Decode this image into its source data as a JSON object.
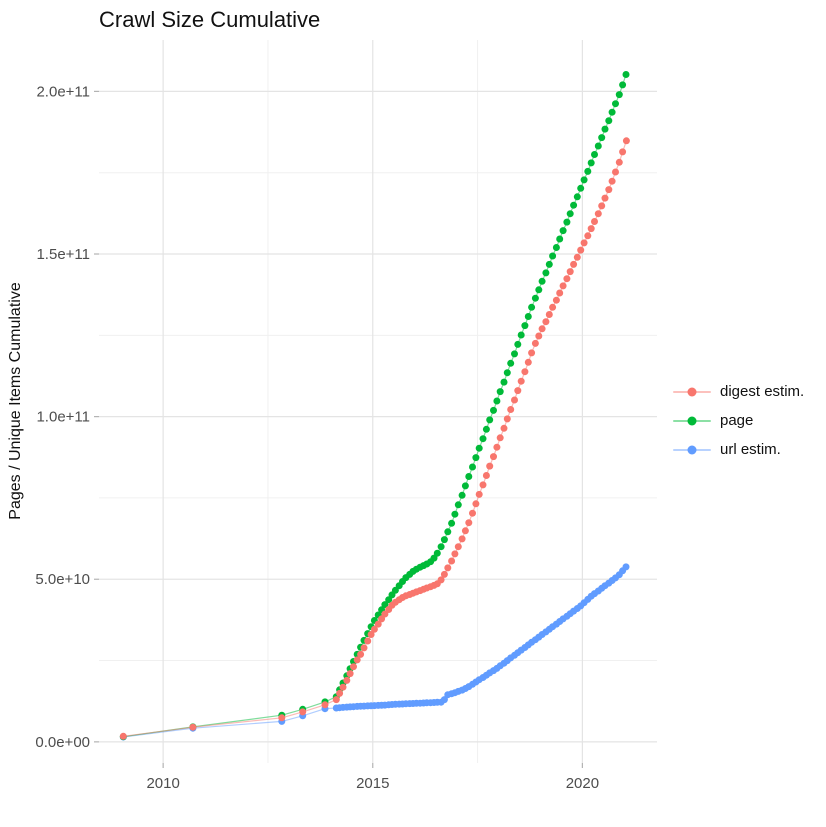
{
  "chart_data": {
    "type": "scatter",
    "title": "Crawl Size Cumulative",
    "xlabel": "",
    "ylabel": "Pages / Unique Items Cumulative",
    "legend_position": "right",
    "grid": true,
    "xlim": [
      2008.47,
      2021.78
    ],
    "ylim_e9": [
      -6.5,
      215.8
    ],
    "y_unit": 1000000000,
    "x_ticks": {
      "values": [
        2010,
        2015,
        2020
      ],
      "labels": [
        "2010",
        "2015",
        "2020"
      ]
    },
    "x_minor": [
      2012.5,
      2017.5
    ],
    "y_ticks": {
      "values_e9": [
        0,
        50,
        100,
        150,
        200
      ],
      "labels": [
        "0.0e+00",
        "5.0e+10",
        "1.0e+11",
        "1.5e+11",
        "2.0e+11"
      ]
    },
    "y_minor_e9": [
      25,
      75,
      125,
      175
    ],
    "style": {
      "background": "#FFFFFF",
      "grid_major": "#E4E4E4",
      "grid_minor": "#F0F0F0",
      "tick_color": "#B3B3B3",
      "tick_label_color": "#4D4D4D",
      "point_radius": 3.5
    },
    "draw_order": [
      2,
      1,
      0
    ],
    "series": [
      {
        "name": "digest estim.",
        "color": "#F8766D",
        "points_year_e9": [
          [
            2009.05,
            1.7
          ],
          [
            2010.71,
            4.5
          ],
          [
            2012.83,
            7.4
          ],
          [
            2013.33,
            9.2
          ],
          [
            2013.86,
            11.4
          ],
          [
            2014.13,
            13.0
          ],
          [
            2014.21,
            14.9
          ],
          [
            2014.29,
            16.8
          ],
          [
            2014.38,
            18.9
          ],
          [
            2014.46,
            21.0
          ],
          [
            2014.54,
            23.1
          ],
          [
            2014.63,
            25.2
          ],
          [
            2014.71,
            26.9
          ],
          [
            2014.79,
            28.9
          ],
          [
            2014.88,
            31.0
          ],
          [
            2014.96,
            33.0
          ],
          [
            2015.04,
            34.6
          ],
          [
            2015.13,
            36.2
          ],
          [
            2015.21,
            37.8
          ],
          [
            2015.29,
            39.3
          ],
          [
            2015.38,
            40.7
          ],
          [
            2015.46,
            42.0
          ],
          [
            2015.54,
            42.9
          ],
          [
            2015.63,
            43.7
          ],
          [
            2015.71,
            44.4
          ],
          [
            2015.79,
            44.9
          ],
          [
            2015.88,
            45.3
          ],
          [
            2015.96,
            45.7
          ],
          [
            2016.04,
            46.1
          ],
          [
            2016.13,
            46.5
          ],
          [
            2016.21,
            46.9
          ],
          [
            2016.29,
            47.3
          ],
          [
            2016.38,
            47.7
          ],
          [
            2016.46,
            48.1
          ],
          [
            2016.54,
            48.6
          ],
          [
            2016.63,
            49.8
          ],
          [
            2016.71,
            51.5
          ],
          [
            2016.79,
            53.5
          ],
          [
            2016.88,
            55.6
          ],
          [
            2016.96,
            57.8
          ],
          [
            2017.04,
            60.0
          ],
          [
            2017.13,
            62.4
          ],
          [
            2017.21,
            64.9
          ],
          [
            2017.29,
            67.4
          ],
          [
            2017.38,
            70.3
          ],
          [
            2017.46,
            73.2
          ],
          [
            2017.54,
            76.1
          ],
          [
            2017.63,
            79.0
          ],
          [
            2017.71,
            81.9
          ],
          [
            2017.79,
            84.8
          ],
          [
            2017.88,
            87.7
          ],
          [
            2017.96,
            90.6
          ],
          [
            2018.04,
            93.5
          ],
          [
            2018.13,
            96.4
          ],
          [
            2018.21,
            99.3
          ],
          [
            2018.29,
            102.2
          ],
          [
            2018.38,
            105.1
          ],
          [
            2018.46,
            108.0
          ],
          [
            2018.54,
            110.9
          ],
          [
            2018.63,
            113.8
          ],
          [
            2018.71,
            116.7
          ],
          [
            2018.79,
            119.6
          ],
          [
            2018.88,
            122.5
          ],
          [
            2018.96,
            124.8
          ],
          [
            2019.04,
            127.0
          ],
          [
            2019.13,
            129.2
          ],
          [
            2019.21,
            131.4
          ],
          [
            2019.29,
            133.6
          ],
          [
            2019.38,
            135.8
          ],
          [
            2019.46,
            138.0
          ],
          [
            2019.54,
            140.2
          ],
          [
            2019.63,
            142.4
          ],
          [
            2019.71,
            144.6
          ],
          [
            2019.79,
            146.8
          ],
          [
            2019.88,
            149.0
          ],
          [
            2019.96,
            151.2
          ],
          [
            2020.04,
            153.4
          ],
          [
            2020.13,
            155.6
          ],
          [
            2020.21,
            157.8
          ],
          [
            2020.29,
            160.0
          ],
          [
            2020.38,
            162.4
          ],
          [
            2020.46,
            164.8
          ],
          [
            2020.54,
            167.2
          ],
          [
            2020.63,
            169.8
          ],
          [
            2020.71,
            172.4
          ],
          [
            2020.79,
            175.2
          ],
          [
            2020.88,
            178.2
          ],
          [
            2020.96,
            181.4
          ],
          [
            2021.05,
            184.8
          ]
        ]
      },
      {
        "name": "page",
        "color": "#00BA38",
        "points_year_e9": [
          [
            2009.05,
            1.6
          ],
          [
            2010.71,
            4.6
          ],
          [
            2012.83,
            8.2
          ],
          [
            2013.33,
            10.0
          ],
          [
            2013.86,
            12.3
          ],
          [
            2014.13,
            13.9
          ],
          [
            2014.21,
            16.0
          ],
          [
            2014.29,
            18.1
          ],
          [
            2014.38,
            20.3
          ],
          [
            2014.46,
            22.5
          ],
          [
            2014.54,
            24.7
          ],
          [
            2014.63,
            26.9
          ],
          [
            2014.71,
            29.1
          ],
          [
            2014.79,
            31.2
          ],
          [
            2014.88,
            33.3
          ],
          [
            2014.96,
            35.4
          ],
          [
            2015.04,
            37.3
          ],
          [
            2015.13,
            39.0
          ],
          [
            2015.21,
            40.6
          ],
          [
            2015.29,
            42.2
          ],
          [
            2015.38,
            43.7
          ],
          [
            2015.46,
            45.2
          ],
          [
            2015.54,
            46.6
          ],
          [
            2015.63,
            48.0
          ],
          [
            2015.71,
            49.3
          ],
          [
            2015.79,
            50.5
          ],
          [
            2015.88,
            51.5
          ],
          [
            2015.96,
            52.4
          ],
          [
            2016.04,
            53.1
          ],
          [
            2016.13,
            53.7
          ],
          [
            2016.21,
            54.2
          ],
          [
            2016.29,
            54.7
          ],
          [
            2016.38,
            55.4
          ],
          [
            2016.46,
            56.5
          ],
          [
            2016.54,
            58.0
          ],
          [
            2016.63,
            60.0
          ],
          [
            2016.71,
            62.2
          ],
          [
            2016.79,
            64.6
          ],
          [
            2016.88,
            67.2
          ],
          [
            2016.96,
            70.0
          ],
          [
            2017.04,
            72.9
          ],
          [
            2017.13,
            75.8
          ],
          [
            2017.21,
            78.7
          ],
          [
            2017.29,
            81.6
          ],
          [
            2017.38,
            84.5
          ],
          [
            2017.46,
            87.4
          ],
          [
            2017.54,
            90.3
          ],
          [
            2017.63,
            93.2
          ],
          [
            2017.71,
            96.1
          ],
          [
            2017.79,
            99.0
          ],
          [
            2017.88,
            101.9
          ],
          [
            2017.96,
            104.8
          ],
          [
            2018.04,
            107.7
          ],
          [
            2018.13,
            110.6
          ],
          [
            2018.21,
            113.5
          ],
          [
            2018.29,
            116.4
          ],
          [
            2018.38,
            119.3
          ],
          [
            2018.46,
            122.2
          ],
          [
            2018.54,
            125.1
          ],
          [
            2018.63,
            128.0
          ],
          [
            2018.71,
            130.8
          ],
          [
            2018.79,
            133.6
          ],
          [
            2018.88,
            136.4
          ],
          [
            2018.96,
            139.0
          ],
          [
            2019.04,
            141.6
          ],
          [
            2019.13,
            144.2
          ],
          [
            2019.21,
            146.8
          ],
          [
            2019.29,
            149.4
          ],
          [
            2019.38,
            152.0
          ],
          [
            2019.46,
            154.6
          ],
          [
            2019.54,
            157.2
          ],
          [
            2019.63,
            159.8
          ],
          [
            2019.71,
            162.4
          ],
          [
            2019.79,
            165.0
          ],
          [
            2019.88,
            167.6
          ],
          [
            2019.96,
            170.2
          ],
          [
            2020.04,
            172.8
          ],
          [
            2020.13,
            175.4
          ],
          [
            2020.21,
            178.0
          ],
          [
            2020.29,
            180.6
          ],
          [
            2020.38,
            183.2
          ],
          [
            2020.46,
            185.8
          ],
          [
            2020.54,
            188.4
          ],
          [
            2020.63,
            191.0
          ],
          [
            2020.71,
            193.6
          ],
          [
            2020.79,
            196.2
          ],
          [
            2020.88,
            199.0
          ],
          [
            2020.96,
            202.0
          ],
          [
            2021.04,
            205.2
          ]
        ]
      },
      {
        "name": "url estim.",
        "color": "#619CFF",
        "points_year_e9": [
          [
            2009.05,
            1.5
          ],
          [
            2010.71,
            4.2
          ],
          [
            2012.83,
            6.3
          ],
          [
            2013.33,
            8.0
          ],
          [
            2013.86,
            10.2
          ],
          [
            2014.13,
            10.4
          ],
          [
            2014.21,
            10.5
          ],
          [
            2014.29,
            10.6
          ],
          [
            2014.38,
            10.7
          ],
          [
            2014.46,
            10.75
          ],
          [
            2014.54,
            10.8
          ],
          [
            2014.63,
            10.9
          ],
          [
            2014.71,
            10.95
          ],
          [
            2014.79,
            11.0
          ],
          [
            2014.88,
            11.05
          ],
          [
            2014.96,
            11.1
          ],
          [
            2015.04,
            11.15
          ],
          [
            2015.13,
            11.2
          ],
          [
            2015.21,
            11.25
          ],
          [
            2015.29,
            11.3
          ],
          [
            2015.38,
            11.4
          ],
          [
            2015.46,
            11.5
          ],
          [
            2015.54,
            11.55
          ],
          [
            2015.63,
            11.6
          ],
          [
            2015.71,
            11.65
          ],
          [
            2015.79,
            11.7
          ],
          [
            2015.88,
            11.75
          ],
          [
            2015.96,
            11.8
          ],
          [
            2016.04,
            11.85
          ],
          [
            2016.13,
            11.9
          ],
          [
            2016.21,
            11.95
          ],
          [
            2016.29,
            12.0
          ],
          [
            2016.38,
            12.05
          ],
          [
            2016.46,
            12.1
          ],
          [
            2016.54,
            12.15
          ],
          [
            2016.63,
            12.2
          ],
          [
            2016.71,
            13.0
          ],
          [
            2016.79,
            14.5
          ],
          [
            2016.88,
            14.8
          ],
          [
            2016.96,
            15.1
          ],
          [
            2017.04,
            15.5
          ],
          [
            2017.13,
            15.9
          ],
          [
            2017.21,
            16.4
          ],
          [
            2017.29,
            17.0
          ],
          [
            2017.38,
            17.7
          ],
          [
            2017.46,
            18.4
          ],
          [
            2017.54,
            19.1
          ],
          [
            2017.63,
            19.8
          ],
          [
            2017.71,
            20.5
          ],
          [
            2017.79,
            21.2
          ],
          [
            2017.88,
            21.9
          ],
          [
            2017.96,
            22.6
          ],
          [
            2018.04,
            23.4
          ],
          [
            2018.13,
            24.2
          ],
          [
            2018.21,
            25.0
          ],
          [
            2018.29,
            25.8
          ],
          [
            2018.38,
            26.6
          ],
          [
            2018.46,
            27.4
          ],
          [
            2018.54,
            28.2
          ],
          [
            2018.63,
            29.0
          ],
          [
            2018.71,
            29.8
          ],
          [
            2018.79,
            30.6
          ],
          [
            2018.88,
            31.4
          ],
          [
            2018.96,
            32.2
          ],
          [
            2019.04,
            33.0
          ],
          [
            2019.13,
            33.8
          ],
          [
            2019.21,
            34.6
          ],
          [
            2019.29,
            35.4
          ],
          [
            2019.38,
            36.2
          ],
          [
            2019.46,
            37.0
          ],
          [
            2019.54,
            37.8
          ],
          [
            2019.63,
            38.6
          ],
          [
            2019.71,
            39.4
          ],
          [
            2019.79,
            40.2
          ],
          [
            2019.88,
            41.0
          ],
          [
            2019.96,
            41.8
          ],
          [
            2020.04,
            42.8
          ],
          [
            2020.13,
            43.8
          ],
          [
            2020.21,
            44.8
          ],
          [
            2020.29,
            45.6
          ],
          [
            2020.38,
            46.4
          ],
          [
            2020.46,
            47.2
          ],
          [
            2020.54,
            48.0
          ],
          [
            2020.63,
            48.8
          ],
          [
            2020.71,
            49.6
          ],
          [
            2020.79,
            50.4
          ],
          [
            2020.88,
            51.4
          ],
          [
            2020.96,
            52.6
          ],
          [
            2021.04,
            53.8
          ]
        ]
      }
    ]
  }
}
